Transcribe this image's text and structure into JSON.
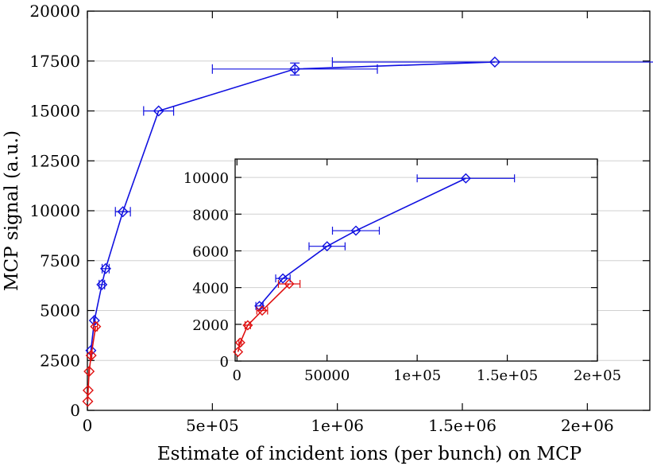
{
  "colors": {
    "blue": "#1010e0",
    "red": "#e01010",
    "grid": "#d0d0d0",
    "frame": "#000000"
  },
  "chart_data": [
    {
      "id": "main",
      "type": "line",
      "xlabel": "Estimate of incident ions (per bunch) on MCP",
      "ylabel": "MCP signal (a.u.)",
      "xlim": [
        0,
        2250000
      ],
      "ylim": [
        0,
        20000
      ],
      "xticks": [
        0,
        500000,
        1000000,
        1500000,
        2000000
      ],
      "xtick_labels": [
        "0",
        "5e+05",
        "1e+06",
        "1.5e+06",
        "2e+06"
      ],
      "yticks": [
        0,
        2500,
        5000,
        7500,
        10000,
        12500,
        15000,
        17500,
        20000
      ],
      "ytick_labels": [
        "0",
        "2500",
        "5000",
        "7500",
        "10000",
        "12500",
        "15000",
        "17500",
        "20000"
      ],
      "grid": "horizontal",
      "series": [
        {
          "name": "blue",
          "color": "#1010e0",
          "marker": "diamond",
          "points": [
            {
              "x": 14000,
              "y": 3000,
              "xerr": 0,
              "yerr": 0
            },
            {
              "x": 28000,
              "y": 4500,
              "xerr": 3000,
              "yerr": 0
            },
            {
              "x": 58000,
              "y": 6300,
              "xerr": 11000,
              "yerr": 0
            },
            {
              "x": 73000,
              "y": 7100,
              "xerr": 14000,
              "yerr": 0
            },
            {
              "x": 142000,
              "y": 9950,
              "xerr": 30000,
              "yerr": 0
            },
            {
              "x": 285000,
              "y": 15000,
              "xerr": 60000,
              "yerr": 0
            },
            {
              "x": 830000,
              "y": 17100,
              "xerr": 330000,
              "yerr": 300
            },
            {
              "x": 1630000,
              "y": 17450,
              "xerr": 650000,
              "yerr": 0
            }
          ]
        },
        {
          "name": "red",
          "color": "#e01010",
          "marker": "diamond",
          "points": [
            {
              "x": 1500,
              "y": 450,
              "xerr": 0,
              "yerr": 0
            },
            {
              "x": 3000,
              "y": 1000,
              "xerr": 0,
              "yerr": 0
            },
            {
              "x": 7000,
              "y": 1950,
              "xerr": 1500,
              "yerr": 0
            },
            {
              "x": 15000,
              "y": 2750,
              "xerr": 3000,
              "yerr": 0
            },
            {
              "x": 33000,
              "y": 4200,
              "xerr": 7000,
              "yerr": 0
            }
          ]
        }
      ]
    },
    {
      "id": "inset",
      "type": "line",
      "xlabel": "",
      "ylabel": "",
      "xlim": [
        -1000,
        200000
      ],
      "ylim": [
        0,
        11000
      ],
      "xticks": [
        0,
        50000,
        100000,
        150000,
        200000
      ],
      "xtick_labels": [
        "0",
        "50000",
        "1e+05",
        "1.5e+05",
        "2e+05"
      ],
      "yticks": [
        0,
        2000,
        4000,
        6000,
        8000,
        10000
      ],
      "ytick_labels": [
        "0",
        "2000",
        "4000",
        "6000",
        "8000",
        "10000"
      ],
      "grid": "horizontal",
      "series": [
        {
          "name": "blue",
          "color": "#1010e0",
          "marker": "diamond",
          "points": [
            {
              "x": 12500,
              "y": 3000,
              "xerr": 2000,
              "yerr": 0
            },
            {
              "x": 25500,
              "y": 4500,
              "xerr": 4000,
              "yerr": 0
            },
            {
              "x": 50000,
              "y": 6250,
              "xerr": 10000,
              "yerr": 0
            },
            {
              "x": 66000,
              "y": 7100,
              "xerr": 13000,
              "yerr": 0
            },
            {
              "x": 127000,
              "y": 9950,
              "xerr": 27000,
              "yerr": 0
            }
          ]
        },
        {
          "name": "red",
          "color": "#e01010",
          "marker": "diamond",
          "points": [
            {
              "x": 600,
              "y": 500,
              "xerr": 0,
              "yerr": 0
            },
            {
              "x": 1800,
              "y": 1000,
              "xerr": 700,
              "yerr": 0
            },
            {
              "x": 6000,
              "y": 1950,
              "xerr": 1500,
              "yerr": 0
            },
            {
              "x": 14000,
              "y": 2750,
              "xerr": 3000,
              "yerr": 0
            },
            {
              "x": 29000,
              "y": 4200,
              "xerr": 6000,
              "yerr": 0
            }
          ]
        }
      ]
    }
  ]
}
